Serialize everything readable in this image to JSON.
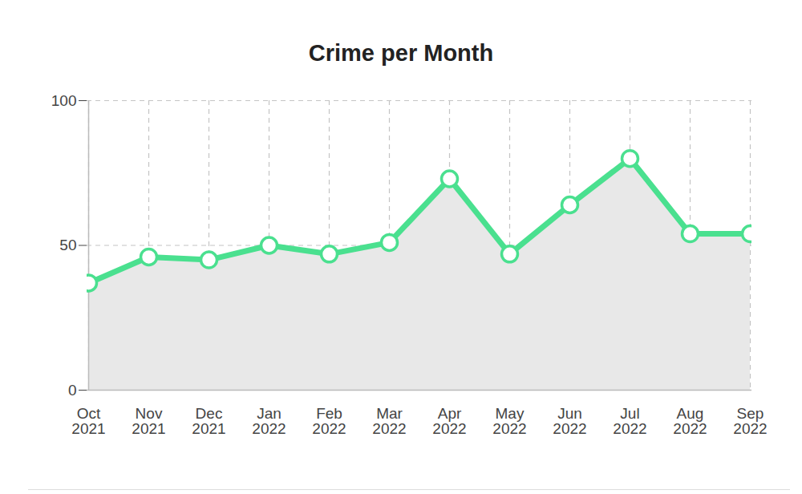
{
  "chart_data": {
    "type": "line",
    "title": "Crime per Month",
    "categories": [
      "Oct 2021",
      "Nov 2021",
      "Dec 2021",
      "Jan 2022",
      "Feb 2022",
      "Mar 2022",
      "Apr 2022",
      "May 2022",
      "Jun 2022",
      "Jul 2022",
      "Aug 2022",
      "Sep 2022"
    ],
    "values": [
      37,
      46,
      45,
      50,
      47,
      51,
      73,
      47,
      64,
      80,
      54,
      54
    ],
    "color": "#4ae08f",
    "ylim": [
      0,
      100
    ],
    "yticks": [
      0,
      50,
      100
    ],
    "grid": true,
    "marker": "circle"
  }
}
